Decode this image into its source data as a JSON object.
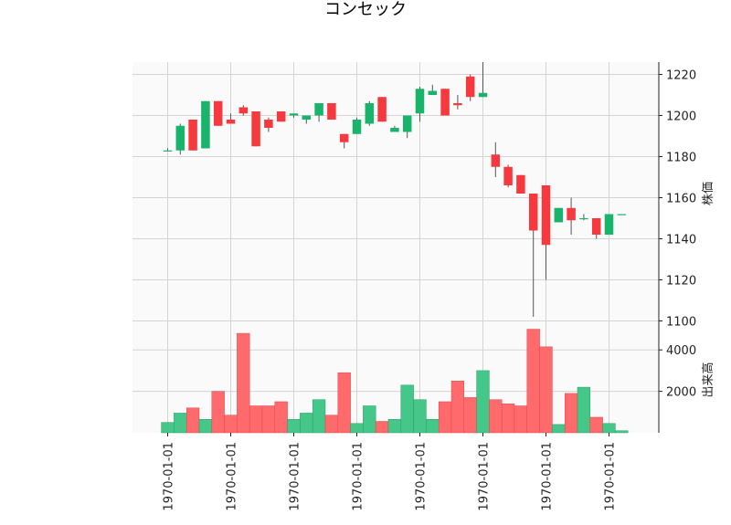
{
  "chart_data": {
    "title": "コンセック",
    "type": "candlestick",
    "x_tick_labels": [
      "1970-01-01",
      "1970-01-01",
      "1970-01-01",
      "1970-01-01",
      "1970-01-01",
      "1970-01-01",
      "1970-01-01",
      "1970-01-01"
    ],
    "price_panel": {
      "ylabel": "株価",
      "ylim": [
        1098,
        1226
      ],
      "yticks": [
        1100,
        1120,
        1140,
        1160,
        1180,
        1200,
        1220
      ],
      "candles": [
        {
          "o": 1183,
          "c": 1183,
          "h": 1184,
          "l": 1183
        },
        {
          "o": 1183,
          "c": 1195,
          "h": 1196,
          "l": 1181
        },
        {
          "o": 1198,
          "c": 1183,
          "h": 1198,
          "l": 1183
        },
        {
          "o": 1184,
          "c": 1207,
          "h": 1207,
          "l": 1184
        },
        {
          "o": 1207,
          "c": 1195,
          "h": 1207,
          "l": 1195
        },
        {
          "o": 1198,
          "c": 1196,
          "h": 1201,
          "l": 1196
        },
        {
          "o": 1204,
          "c": 1201,
          "h": 1205,
          "l": 1200
        },
        {
          "o": 1202,
          "c": 1185,
          "h": 1202,
          "l": 1185
        },
        {
          "o": 1198,
          "c": 1194,
          "h": 1199,
          "l": 1192
        },
        {
          "o": 1202,
          "c": 1197,
          "h": 1202,
          "l": 1197
        },
        {
          "o": 1200,
          "c": 1201,
          "h": 1201,
          "l": 1199
        },
        {
          "o": 1198,
          "c": 1200,
          "h": 1200,
          "l": 1196
        },
        {
          "o": 1200,
          "c": 1206,
          "h": 1206,
          "l": 1197
        },
        {
          "o": 1206,
          "c": 1198,
          "h": 1206,
          "l": 1198
        },
        {
          "o": 1191,
          "c": 1187,
          "h": 1191,
          "l": 1184
        },
        {
          "o": 1191,
          "c": 1198,
          "h": 1199,
          "l": 1191
        },
        {
          "o": 1196,
          "c": 1206,
          "h": 1207,
          "l": 1195
        },
        {
          "o": 1209,
          "c": 1197,
          "h": 1209,
          "l": 1197
        },
        {
          "o": 1192,
          "c": 1194,
          "h": 1195,
          "l": 1192
        },
        {
          "o": 1192,
          "c": 1200,
          "h": 1200,
          "l": 1189
        },
        {
          "o": 1201,
          "c": 1213,
          "h": 1214,
          "l": 1197
        },
        {
          "o": 1210,
          "c": 1212,
          "h": 1215,
          "l": 1210
        },
        {
          "o": 1213,
          "c": 1200,
          "h": 1213,
          "l": 1200
        },
        {
          "o": 1206,
          "c": 1205,
          "h": 1210,
          "l": 1203
        },
        {
          "o": 1219,
          "c": 1209,
          "h": 1220,
          "l": 1207
        },
        {
          "o": 1209,
          "c": 1211,
          "h": 1226,
          "l": 1209
        },
        {
          "o": 1181,
          "c": 1175,
          "h": 1187,
          "l": 1170
        },
        {
          "o": 1175,
          "c": 1166,
          "h": 1176,
          "l": 1165
        },
        {
          "o": 1171,
          "c": 1162,
          "h": 1171,
          "l": 1162
        },
        {
          "o": 1162,
          "c": 1144,
          "h": 1162,
          "l": 1102
        },
        {
          "o": 1166,
          "c": 1137,
          "h": 1166,
          "l": 1120
        },
        {
          "o": 1148,
          "c": 1155,
          "h": 1155,
          "l": 1148
        },
        {
          "o": 1155,
          "c": 1149,
          "h": 1160,
          "l": 1142
        },
        {
          "o": 1150,
          "c": 1150,
          "h": 1152,
          "l": 1149
        },
        {
          "o": 1150,
          "c": 1142,
          "h": 1150,
          "l": 1140
        },
        {
          "o": 1142,
          "c": 1152,
          "h": 1152,
          "l": 1142
        },
        {
          "o": 1152,
          "c": 1152,
          "h": 1152,
          "l": 1152
        }
      ]
    },
    "volume_panel": {
      "ylabel": "出来高",
      "ylim": [
        0,
        5200
      ],
      "yticks": [
        2000,
        4000
      ],
      "values": [
        500,
        950,
        1200,
        650,
        2000,
        850,
        4800,
        1300,
        1300,
        1500,
        650,
        950,
        1600,
        850,
        2900,
        450,
        1300,
        550,
        650,
        2300,
        1600,
        650,
        1500,
        2500,
        1700,
        3000,
        1600,
        1400,
        1300,
        5000,
        4150,
        400,
        1900,
        2200,
        750,
        450,
        100
      ]
    },
    "colors": {
      "up": "#18b46c",
      "down": "#f5393e",
      "up_vol": "#45c78a",
      "down_vol": "#ff6a6d",
      "wick": "#555555"
    },
    "grid": true
  }
}
